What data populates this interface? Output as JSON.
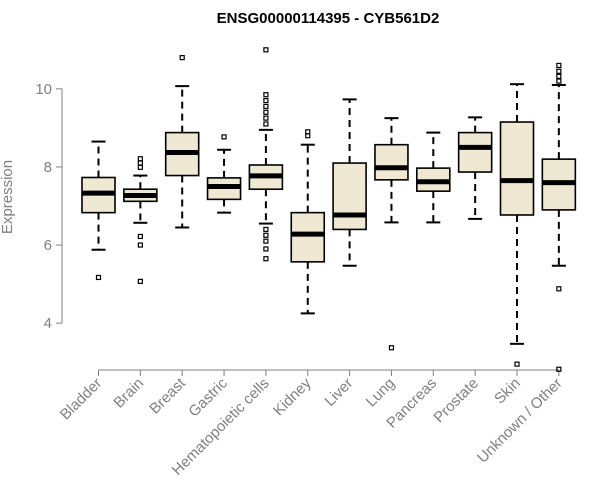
{
  "chart_data": {
    "type": "boxplot",
    "title": "ENSG00000114395 - CYB561D2",
    "xlabel": "",
    "ylabel": "Expression",
    "ylim": [
      2.8,
      11.2
    ],
    "yticks": [
      4,
      6,
      8,
      10
    ],
    "box_fill": "#efe8d2",
    "axis_color": "#808080",
    "categories": [
      "Bladder",
      "Brain",
      "Breast",
      "Gastric",
      "Hematopoietic cells",
      "Kidney",
      "Liver",
      "Lung",
      "Pancreas",
      "Prostate",
      "Skin",
      "Unknown / Other"
    ],
    "boxes": [
      {
        "q1": 6.83,
        "median": 7.33,
        "q3": 7.73,
        "whislo": 5.88,
        "whishi": 8.65,
        "fliers": [
          5.17
        ]
      },
      {
        "q1": 7.12,
        "median": 7.27,
        "q3": 7.43,
        "whislo": 6.57,
        "whishi": 7.78,
        "fliers": [
          5.07,
          6.0,
          6.22,
          7.99,
          8.1,
          8.21
        ]
      },
      {
        "q1": 7.78,
        "median": 8.37,
        "q3": 8.88,
        "whislo": 6.45,
        "whishi": 10.07,
        "fliers": [
          10.8
        ]
      },
      {
        "q1": 7.17,
        "median": 7.5,
        "q3": 7.72,
        "whislo": 6.83,
        "whishi": 8.44,
        "fliers": [
          8.77
        ]
      },
      {
        "q1": 7.43,
        "median": 7.77,
        "q3": 8.05,
        "whislo": 6.55,
        "whishi": 8.95,
        "fliers": [
          5.65,
          5.9,
          6.1,
          6.25,
          6.4,
          9.1,
          9.25,
          9.4,
          9.55,
          9.7,
          9.85,
          11.0
        ]
      },
      {
        "q1": 5.57,
        "median": 6.28,
        "q3": 6.83,
        "whislo": 4.25,
        "whishi": 8.57,
        "fliers": [
          8.8,
          8.9
        ]
      },
      {
        "q1": 6.4,
        "median": 6.77,
        "q3": 8.1,
        "whislo": 5.47,
        "whishi": 9.73,
        "fliers": []
      },
      {
        "q1": 7.67,
        "median": 7.98,
        "q3": 8.57,
        "whislo": 6.58,
        "whishi": 9.25,
        "fliers": [
          3.37
        ]
      },
      {
        "q1": 7.38,
        "median": 7.62,
        "q3": 7.97,
        "whislo": 6.58,
        "whishi": 8.88,
        "fliers": []
      },
      {
        "q1": 7.87,
        "median": 8.5,
        "q3": 8.88,
        "whislo": 6.67,
        "whishi": 9.27,
        "fliers": []
      },
      {
        "q1": 6.77,
        "median": 7.65,
        "q3": 9.15,
        "whislo": 3.47,
        "whishi": 10.12,
        "fliers": [
          2.95
        ]
      },
      {
        "q1": 6.9,
        "median": 7.6,
        "q3": 8.2,
        "whislo": 5.47,
        "whishi": 10.1,
        "fliers": [
          2.82,
          4.88,
          10.2,
          10.32,
          10.45,
          10.6
        ]
      }
    ]
  }
}
